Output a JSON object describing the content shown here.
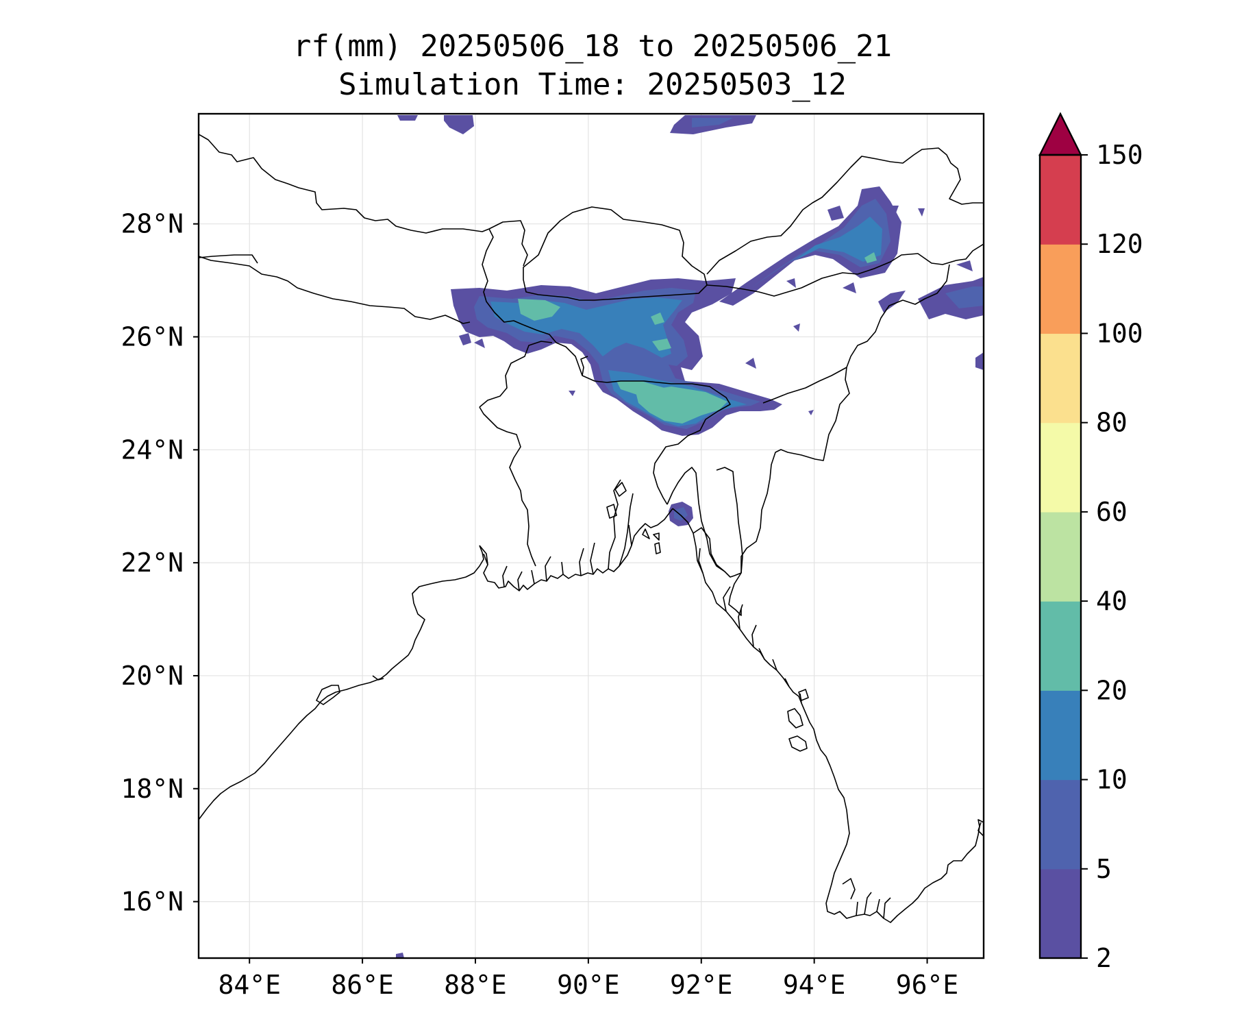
{
  "title_line1": "rf(mm) 20250506_18 to 20250506_21",
  "title_line2": "Simulation Time: 20250503_12",
  "map": {
    "lon_range": [
      83.1,
      97.0
    ],
    "lat_range": [
      15.0,
      29.95
    ],
    "lon_ticks": [
      84,
      86,
      88,
      90,
      92,
      94,
      96
    ],
    "lon_tick_labels": [
      "84°E",
      "86°E",
      "88°E",
      "90°E",
      "92°E",
      "94°E",
      "96°E"
    ],
    "lat_ticks": [
      16,
      18,
      20,
      22,
      24,
      26,
      28
    ],
    "lat_tick_labels": [
      "16°N",
      "18°N",
      "20°N",
      "22°N",
      "24°N",
      "26°N",
      "28°N"
    ],
    "gridlines": true
  },
  "colorbar": {
    "levels": [
      2,
      5,
      10,
      20,
      40,
      60,
      80,
      100,
      120,
      150
    ],
    "tick_labels": [
      "2",
      "5",
      "10",
      "20",
      "40",
      "60",
      "80",
      "100",
      "120",
      "150"
    ],
    "colors": [
      "#5a50a2",
      "#4f63ae",
      "#3880ba",
      "#62bca8",
      "#bce3a2",
      "#f4faa8",
      "#fbe08e",
      "#f99e5a",
      "#d53e4f"
    ],
    "extend_color": "#9e0142",
    "extend": "max"
  },
  "rain_colors": {
    "c2": "#5a50a2",
    "c5": "#4f63ae",
    "c10": "#3880ba",
    "c20": "#62bca8"
  }
}
